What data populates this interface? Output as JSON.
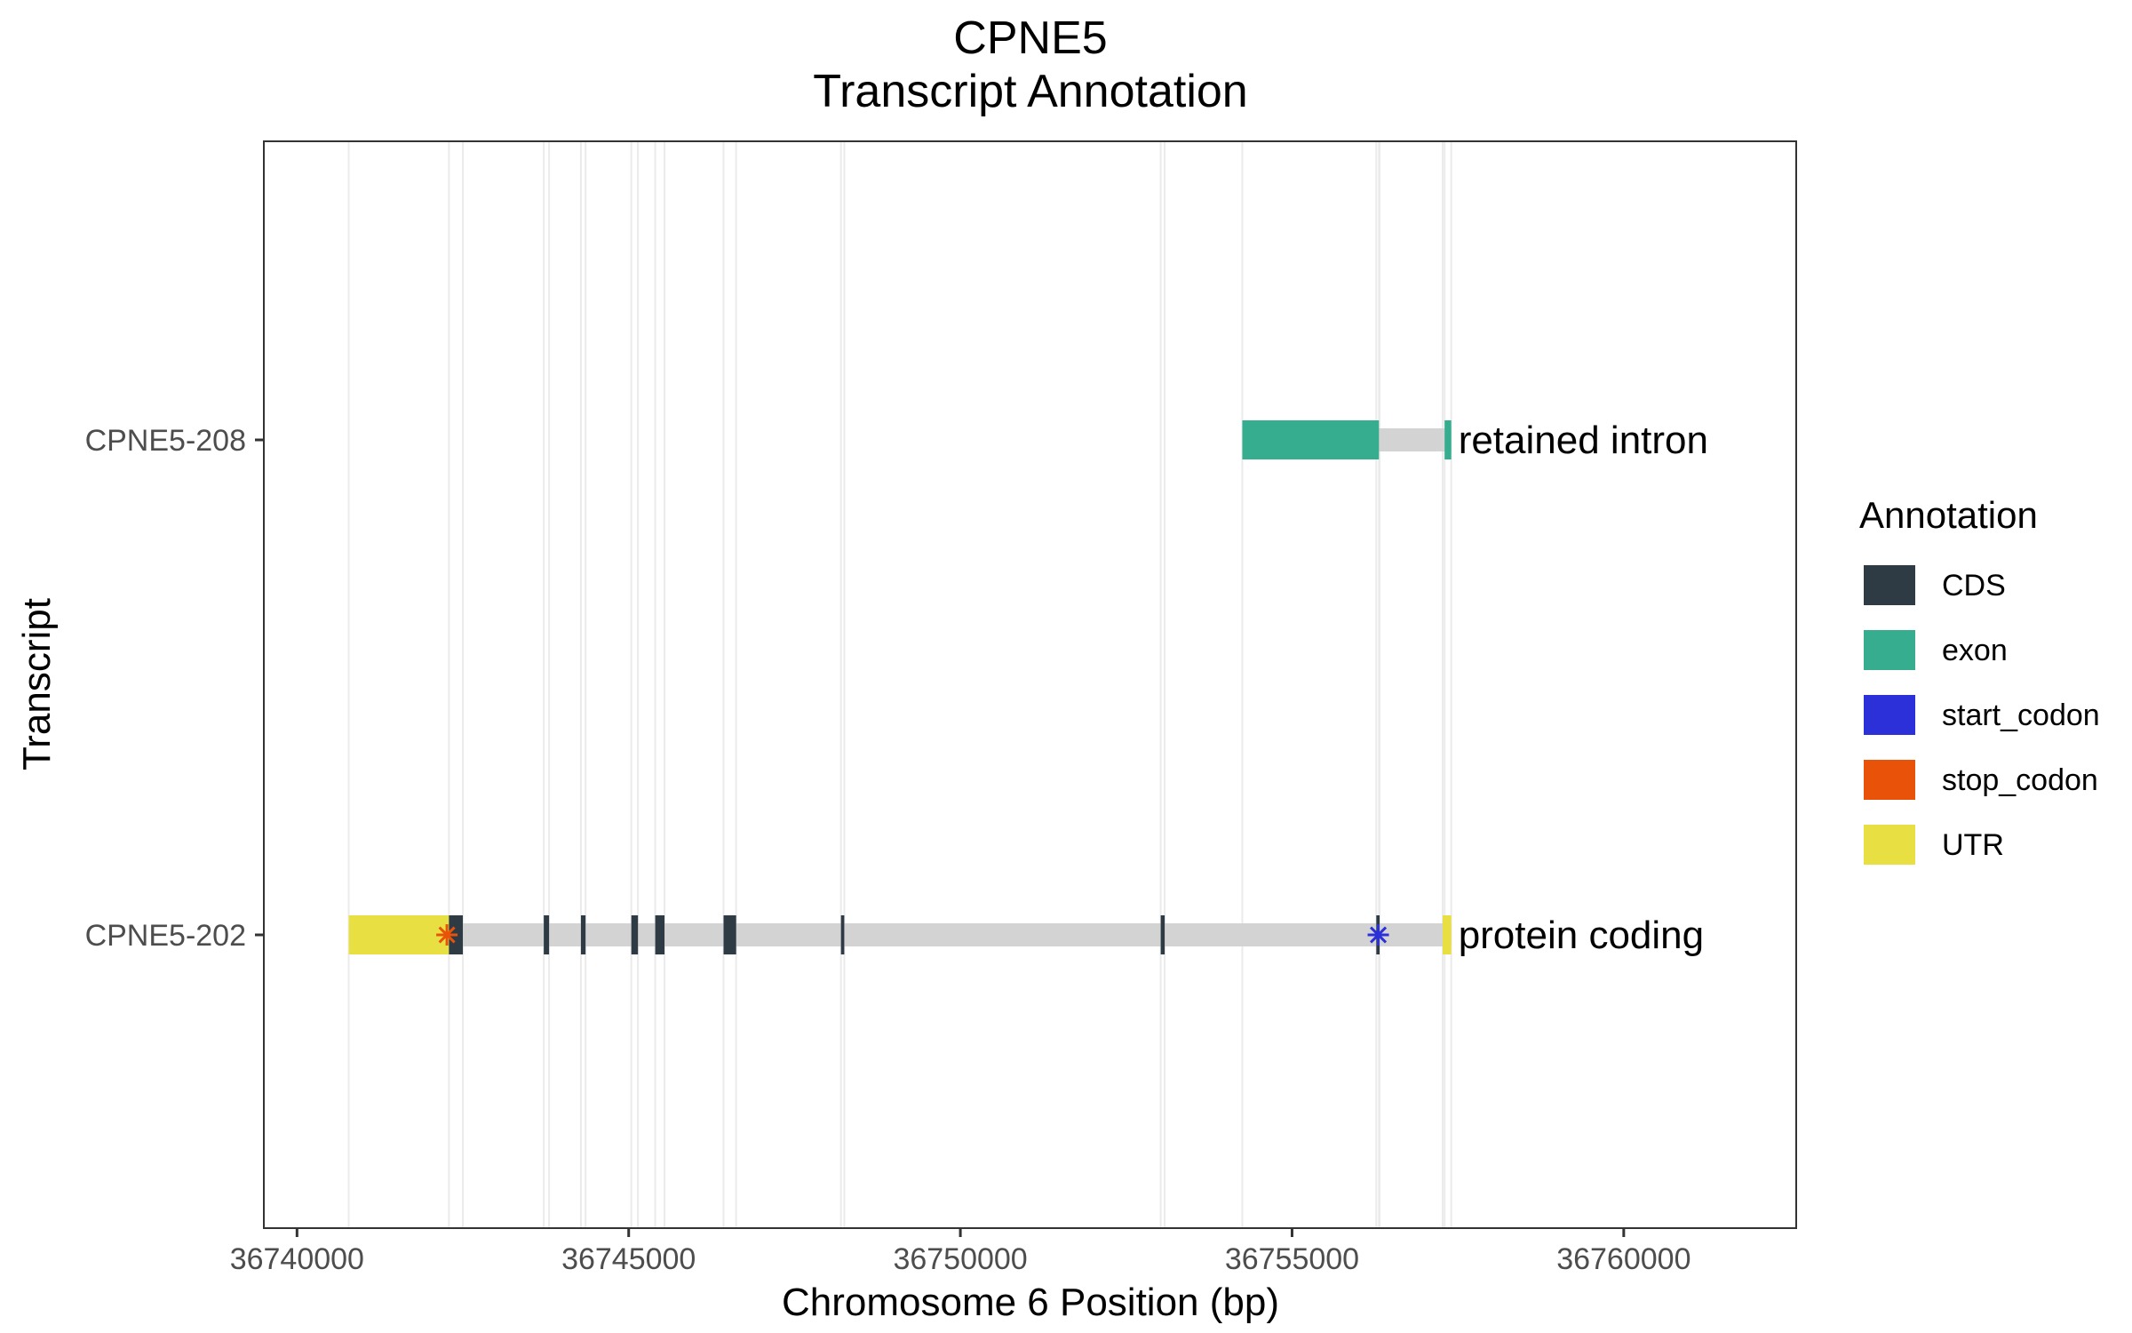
{
  "chart_data": {
    "type": "gene-track",
    "title": "CPNE5",
    "subtitle": "Transcript Annotation",
    "xlabel": "Chromosome 6 Position (bp)",
    "ylabel": "Transcript",
    "xlim": [
      36739500,
      36762600
    ],
    "x_ticks": [
      {
        "value": 36740000,
        "label": "36740000"
      },
      {
        "value": 36745000,
        "label": "36745000"
      },
      {
        "value": 36750000,
        "label": "36750000"
      },
      {
        "value": 36755000,
        "label": "36755000"
      },
      {
        "value": 36760000,
        "label": "36760000"
      }
    ],
    "grid": true,
    "legend": {
      "title": "Annotation",
      "position": "right",
      "items": [
        {
          "key": "CDS",
          "label": "CDS",
          "color": "#2e3a44"
        },
        {
          "key": "exon",
          "label": "exon",
          "color": "#35ad8e"
        },
        {
          "key": "start_codon",
          "label": "start_codon",
          "color": "#2b30d9"
        },
        {
          "key": "stop_codon",
          "label": "stop_codon",
          "color": "#e95309"
        },
        {
          "key": "UTR",
          "label": "UTR",
          "color": "#e8e043"
        }
      ]
    },
    "intron_color": "#d3d3d3",
    "grid_color": "#ebebeb",
    "transcripts": [
      {
        "name": "CPNE5-208",
        "biotype": "retained intron",
        "start": 36754250,
        "end": 36757400,
        "features": [
          {
            "type": "exon",
            "start": 36754250,
            "end": 36756310
          },
          {
            "type": "exon",
            "start": 36757300,
            "end": 36757400
          }
        ]
      },
      {
        "name": "CPNE5-202",
        "biotype": "protein coding",
        "start": 36740780,
        "end": 36757400,
        "features": [
          {
            "type": "UTR",
            "start": 36740780,
            "end": 36742290
          },
          {
            "type": "CDS",
            "start": 36742290,
            "end": 36742500
          },
          {
            "type": "CDS",
            "start": 36743720,
            "end": 36743800
          },
          {
            "type": "CDS",
            "start": 36744280,
            "end": 36744350
          },
          {
            "type": "CDS",
            "start": 36745040,
            "end": 36745140
          },
          {
            "type": "CDS",
            "start": 36745400,
            "end": 36745540
          },
          {
            "type": "CDS",
            "start": 36746430,
            "end": 36746620
          },
          {
            "type": "CDS",
            "start": 36748200,
            "end": 36748250
          },
          {
            "type": "CDS",
            "start": 36753020,
            "end": 36753080
          },
          {
            "type": "CDS",
            "start": 36756270,
            "end": 36756320
          },
          {
            "type": "UTR",
            "start": 36757270,
            "end": 36757400
          }
        ],
        "start_codon": 36756300,
        "stop_codon": 36742260
      }
    ]
  }
}
